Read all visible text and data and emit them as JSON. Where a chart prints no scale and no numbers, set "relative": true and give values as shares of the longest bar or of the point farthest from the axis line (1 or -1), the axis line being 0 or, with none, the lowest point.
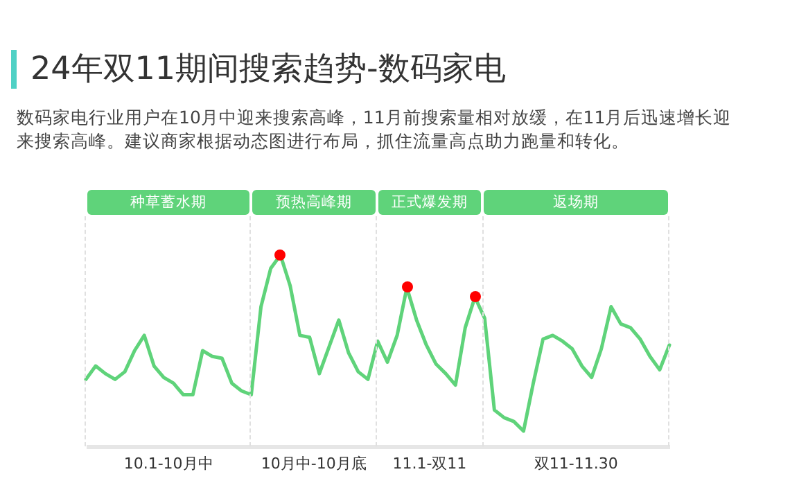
{
  "chart_data": {
    "type": "line",
    "title": "24年双11期间搜索趋势-数码家电",
    "subtitle": "数码家电行业用户在10月中迎来搜索高峰，11月前搜索量相对放缓，在11月后迅速增长迎来搜索高峰。建议商家根据动态图进行布局，抓住流量高点助力跑量和转化。",
    "relative": true,
    "grid": "x",
    "categories": [
      null,
      null,
      null,
      null,
      null,
      null,
      null,
      null,
      null,
      null,
      null,
      null,
      null,
      null,
      null,
      null,
      null,
      null,
      null,
      null,
      null,
      null,
      null,
      null,
      null,
      null,
      null,
      null,
      null,
      null,
      null,
      null,
      null,
      null,
      null,
      null,
      null,
      null,
      null,
      null,
      null,
      null,
      null,
      null,
      null,
      null,
      null,
      null,
      null,
      null,
      null,
      null,
      null,
      null,
      null,
      null,
      null,
      null,
      null,
      null,
      null
    ],
    "series": [
      {
        "color": "#5fd37a",
        "values": [
          0.35,
          0.42,
          0.38,
          0.35,
          0.39,
          0.5,
          0.58,
          0.42,
          0.36,
          0.33,
          0.27,
          0.27,
          0.5,
          0.47,
          0.46,
          0.33,
          0.29,
          0.27,
          0.73,
          0.93,
          1,
          0.84,
          0.58,
          0.57,
          0.38,
          0.52,
          0.66,
          0.49,
          0.39,
          0.35,
          0.55,
          0.44,
          0.58,
          0.83,
          0.66,
          0.53,
          0.43,
          0.38,
          0.32,
          0.62,
          0.78,
          0.67,
          0.19,
          0.15,
          0.13,
          0.08,
          0.33,
          0.56,
          0.58,
          0.55,
          0.51,
          0.42,
          0.36,
          0.51,
          0.73,
          0.64,
          0.62,
          0.56,
          0.47,
          0.4,
          0.53
        ]
      }
    ],
    "annotations": [
      "种草蓄水期",
      "预热高峰期",
      "正式爆发期",
      "返场期",
      "10.1-10月中",
      "10月中-10月底",
      "11.1-双11",
      "双11-11.30"
    ]
  }
}
